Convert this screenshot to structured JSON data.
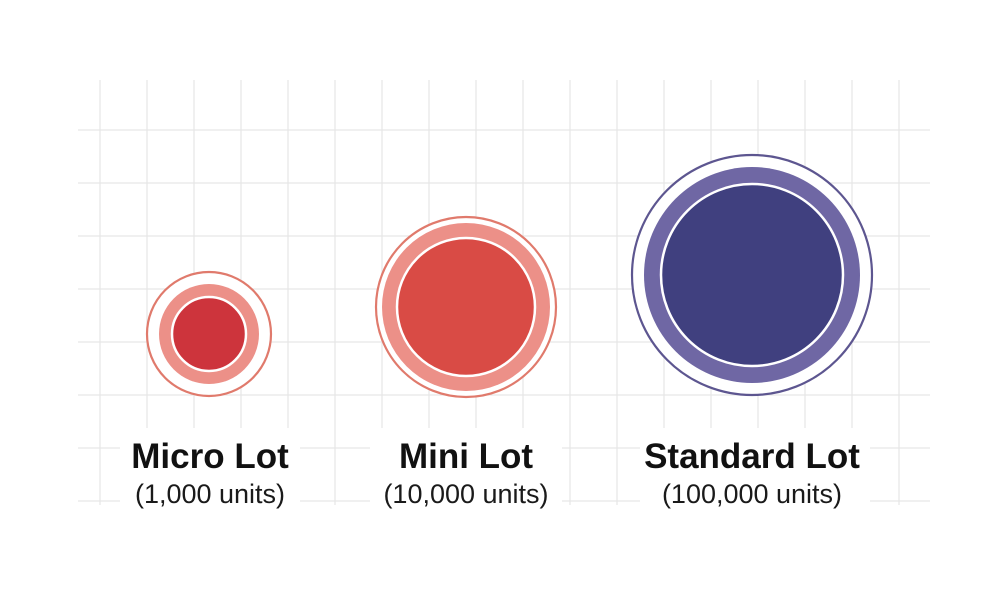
{
  "lots": [
    {
      "name": "Micro Lot",
      "units": "(1,000 units)",
      "colors": {
        "outer_ring": "#e07a6c",
        "halo": "#ec9088",
        "core": "#cd343c"
      }
    },
    {
      "name": "Mini Lot",
      "units": "(10,000 units)",
      "colors": {
        "outer_ring": "#e07a6c",
        "halo": "#ec9088",
        "core": "#d94b45"
      }
    },
    {
      "name": "Standard Lot",
      "units": "(100,000 units)",
      "colors": {
        "outer_ring": "#5d5690",
        "halo": "#6f67a4",
        "core": "#40407f"
      }
    }
  ],
  "colors": {
    "grid": "#e6e6e6",
    "background": "#ffffff",
    "text": "#111111"
  }
}
